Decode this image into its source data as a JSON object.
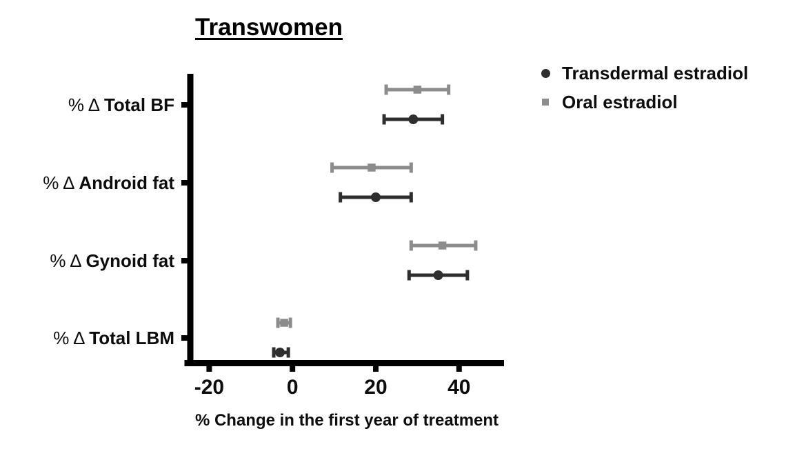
{
  "title": "Transwomen",
  "legend": {
    "items": [
      {
        "label": "Transdermal estradiol",
        "marker": "circle",
        "color": "#2e2e2e"
      },
      {
        "label": "Oral estradiol",
        "marker": "square",
        "color": "#8c8c8c"
      }
    ]
  },
  "chart_data": {
    "type": "scatter",
    "subtype": "forest-plot-dot-with-error-bars",
    "title": "Transwomen",
    "xlabel": "% Change in the first year of treatment",
    "ylabel": "",
    "grid": false,
    "legend_position": "top-right",
    "categories": [
      {
        "prefix": "% Δ",
        "label": "Total BF"
      },
      {
        "prefix": "% Δ",
        "label": "Android fat"
      },
      {
        "prefix": "% Δ",
        "label": "Gynoid fat"
      },
      {
        "prefix": "% Δ",
        "label": "Total LBM"
      }
    ],
    "x_ticks": [
      -20,
      0,
      20,
      40
    ],
    "xlim": [
      -25.2,
      50.8
    ],
    "axis_color": "#000000",
    "text_color": "#0d0d0d",
    "series": [
      {
        "name": "Oral estradiol",
        "marker": "square",
        "color": "#8c8c8c",
        "row": "above",
        "values": [
          {
            "category": "Total BF",
            "mean": 30,
            "lo": 22.5,
            "hi": 37.5
          },
          {
            "category": "Android fat",
            "mean": 19,
            "lo": 9.5,
            "hi": 28.5
          },
          {
            "category": "Gynoid fat",
            "mean": 36,
            "lo": 28.5,
            "hi": 44
          },
          {
            "category": "Total LBM",
            "mean": -2,
            "lo": -3.5,
            "hi": -0.5
          }
        ]
      },
      {
        "name": "Transdermal estradiol",
        "marker": "circle",
        "color": "#2e2e2e",
        "row": "below",
        "values": [
          {
            "category": "Total BF",
            "mean": 29,
            "lo": 22,
            "hi": 36
          },
          {
            "category": "Android fat",
            "mean": 20,
            "lo": 11.5,
            "hi": 28.5
          },
          {
            "category": "Gynoid fat",
            "mean": 35,
            "lo": 28,
            "hi": 42
          },
          {
            "category": "Total LBM",
            "mean": -3,
            "lo": -4.5,
            "hi": -1
          }
        ]
      }
    ]
  }
}
